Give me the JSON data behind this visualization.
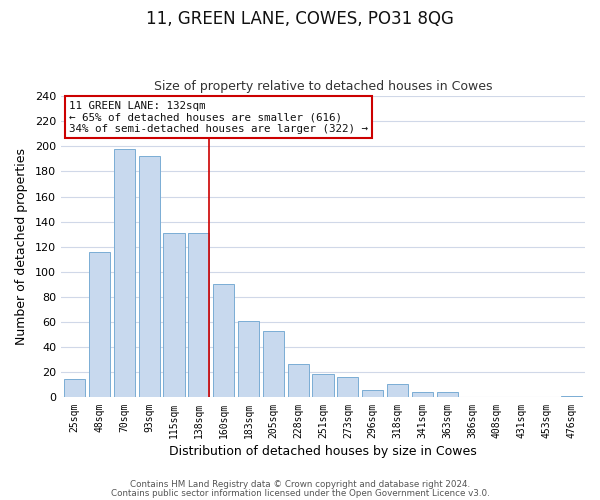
{
  "title": "11, GREEN LANE, COWES, PO31 8QG",
  "subtitle": "Size of property relative to detached houses in Cowes",
  "xlabel": "Distribution of detached houses by size in Cowes",
  "ylabel": "Number of detached properties",
  "categories": [
    "25sqm",
    "48sqm",
    "70sqm",
    "93sqm",
    "115sqm",
    "138sqm",
    "160sqm",
    "183sqm",
    "205sqm",
    "228sqm",
    "251sqm",
    "273sqm",
    "296sqm",
    "318sqm",
    "341sqm",
    "363sqm",
    "386sqm",
    "408sqm",
    "431sqm",
    "453sqm",
    "476sqm"
  ],
  "values": [
    15,
    116,
    198,
    192,
    131,
    131,
    90,
    61,
    53,
    27,
    19,
    16,
    6,
    11,
    4,
    4,
    0,
    0,
    0,
    0,
    1
  ],
  "bar_color": "#c8d9ee",
  "bar_edge_color": "#7aadd4",
  "highlight_index": 5,
  "highlight_line_color": "#cc0000",
  "ylim": [
    0,
    240
  ],
  "yticks": [
    0,
    20,
    40,
    60,
    80,
    100,
    120,
    140,
    160,
    180,
    200,
    220,
    240
  ],
  "annotation_title": "11 GREEN LANE: 132sqm",
  "annotation_line1": "← 65% of detached houses are smaller (616)",
  "annotation_line2": "34% of semi-detached houses are larger (322) →",
  "annotation_box_edge": "#cc0000",
  "footnote1": "Contains HM Land Registry data © Crown copyright and database right 2024.",
  "footnote2": "Contains public sector information licensed under the Open Government Licence v3.0.",
  "fig_background_color": "#ffffff",
  "plot_background_color": "#ffffff",
  "grid_color": "#d0d8e8"
}
